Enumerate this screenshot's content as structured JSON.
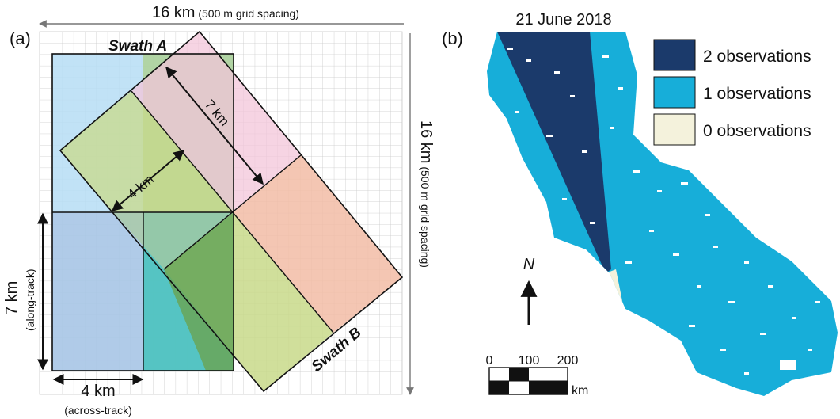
{
  "panel_a": {
    "panel_label": "(a)",
    "top_dim_big": "16 km",
    "top_dim_small": " (500 m grid spacing)",
    "right_dim_big": "16 km",
    "right_dim_small": " (500 m grid spacing)",
    "swath_a_label": "Swath A",
    "swath_b_label": "Swath B",
    "dim_7km_diag": "7 km",
    "dim_4km_diag": "4 km",
    "dim_7km_left": "7 km",
    "dim_along_track": "(along-track)",
    "dim_4km_bottom": "4 km",
    "dim_across_track": "(across-track)",
    "colors": {
      "swath_a_top": "#b6ddf5",
      "swath_a_bottom": "#a7c5e6",
      "green_overlap": "#a9cc78",
      "pink": "#f3c6d9",
      "salmon": "#f2bca6",
      "olive": "#c8d98a",
      "dark_green": "#6aa658",
      "teal": "#45c3bc"
    }
  },
  "panel_b": {
    "panel_label": "(b)",
    "date": "21 June 2018",
    "legend": [
      {
        "label": "2 observations",
        "color": "#1b3a6b"
      },
      {
        "label": "1 observations",
        "color": "#17aed9"
      },
      {
        "label": "0 observations",
        "color": "#f4f2dc"
      }
    ],
    "north_symbol": "N",
    "scale_ticks": [
      "0",
      "100",
      "200"
    ],
    "scale_unit": "km"
  }
}
